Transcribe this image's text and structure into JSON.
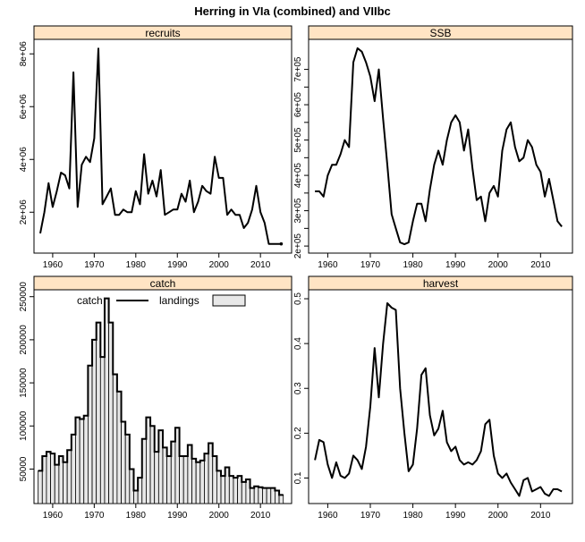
{
  "page": {
    "title": "Herring in VIa (combined) and VIIbc"
  },
  "styles": {
    "strip_fill": "#ffe4c4",
    "bar_fill": "#e8e8e8",
    "line_color": "#000000",
    "frame_color": "#000000"
  },
  "chart_data": [
    {
      "type": "line",
      "title": "recruits",
      "x": [
        1957,
        1958,
        1959,
        1960,
        1961,
        1962,
        1963,
        1964,
        1965,
        1966,
        1967,
        1968,
        1969,
        1970,
        1971,
        1972,
        1973,
        1974,
        1975,
        1976,
        1977,
        1978,
        1979,
        1980,
        1981,
        1982,
        1983,
        1984,
        1985,
        1986,
        1987,
        1988,
        1989,
        1990,
        1991,
        1992,
        1993,
        1994,
        1995,
        1996,
        1997,
        1998,
        1999,
        2000,
        2001,
        2002,
        2003,
        2004,
        2005,
        2006,
        2007,
        2008,
        2009,
        2010,
        2011,
        2012,
        2013,
        2014,
        2015
      ],
      "values": [
        1200000,
        2000000,
        3100000,
        2200000,
        2800000,
        3500000,
        3400000,
        2900000,
        7300000,
        2200000,
        3800000,
        4100000,
        3900000,
        4800000,
        8200000,
        2300000,
        2600000,
        2900000,
        1900000,
        1900000,
        2100000,
        2000000,
        2000000,
        2800000,
        2300000,
        4200000,
        2700000,
        3200000,
        2600000,
        3600000,
        1900000,
        2000000,
        2100000,
        2100000,
        2700000,
        2400000,
        3200000,
        2000000,
        2400000,
        3000000,
        2800000,
        2700000,
        4100000,
        3300000,
        3300000,
        1900000,
        2100000,
        1900000,
        1900000,
        1400000,
        1600000,
        2100000,
        3000000,
        2000000,
        1600000,
        800000,
        800000,
        800000,
        800000
      ],
      "xlim": [
        1955.5,
        2017.5
      ],
      "ylim": [
        450000,
        8550000
      ],
      "x_ticks": [
        1960,
        1970,
        1980,
        1990,
        2000,
        2010
      ],
      "y_ticks": [
        2000000,
        4000000,
        6000000,
        8000000
      ],
      "y_tick_labels": [
        "2e+06",
        "4e+06",
        "6e+06",
        "8e+06"
      ],
      "y_axis_side": "left",
      "x_axis_side": "bottom",
      "end_marker": true
    },
    {
      "type": "line",
      "title": "SSB",
      "x": [
        1957,
        1958,
        1959,
        1960,
        1961,
        1962,
        1963,
        1964,
        1965,
        1966,
        1967,
        1968,
        1969,
        1970,
        1971,
        1972,
        1973,
        1974,
        1975,
        1976,
        1977,
        1978,
        1979,
        1980,
        1981,
        1982,
        1983,
        1984,
        1985,
        1986,
        1987,
        1988,
        1989,
        1990,
        1991,
        1992,
        1993,
        1994,
        1995,
        1996,
        1997,
        1998,
        1999,
        2000,
        2001,
        2002,
        2003,
        2004,
        2005,
        2006,
        2007,
        2008,
        2009,
        2010,
        2011,
        2012,
        2013,
        2014,
        2015
      ],
      "values": [
        355000,
        355000,
        340000,
        400000,
        430000,
        430000,
        460000,
        500000,
        480000,
        720000,
        760000,
        750000,
        720000,
        680000,
        610000,
        700000,
        560000,
        430000,
        290000,
        250000,
        210000,
        205000,
        210000,
        270000,
        320000,
        320000,
        270000,
        360000,
        430000,
        470000,
        430000,
        500000,
        550000,
        570000,
        550000,
        470000,
        530000,
        420000,
        330000,
        340000,
        270000,
        350000,
        370000,
        340000,
        470000,
        530000,
        550000,
        480000,
        440000,
        450000,
        500000,
        480000,
        430000,
        410000,
        340000,
        390000,
        330000,
        270000,
        255000
      ],
      "xlim": [
        1955.5,
        2017.5
      ],
      "ylim": [
        180000,
        785000
      ],
      "x_ticks": [
        1960,
        1970,
        1980,
        1990,
        2000,
        2010
      ],
      "y_ticks": [
        200000,
        250000,
        300000,
        350000,
        400000,
        450000,
        500000,
        550000,
        600000,
        650000,
        700000
      ],
      "y_tick_labels": [
        "2e+05",
        "",
        "3e+05",
        "",
        "4e+05",
        "",
        "5e+05",
        "",
        "6e+05",
        "",
        "7e+05"
      ],
      "y_axis_side": "left",
      "x_axis_side": "bottom"
    },
    {
      "type": "bar",
      "title": "catch",
      "legend": {
        "line_label": "catch",
        "bar_label": "landings",
        "position": "top-left"
      },
      "x": [
        1957,
        1958,
        1959,
        1960,
        1961,
        1962,
        1963,
        1964,
        1965,
        1966,
        1967,
        1968,
        1969,
        1970,
        1971,
        1972,
        1973,
        1974,
        1975,
        1976,
        1977,
        1978,
        1979,
        1980,
        1981,
        1982,
        1983,
        1984,
        1985,
        1986,
        1987,
        1988,
        1989,
        1990,
        1991,
        1992,
        1993,
        1994,
        1995,
        1996,
        1997,
        1998,
        1999,
        2000,
        2001,
        2002,
        2003,
        2004,
        2005,
        2006,
        2007,
        2008,
        2009,
        2010,
        2011,
        2012,
        2013,
        2014,
        2015
      ],
      "values": [
        48000,
        65000,
        70000,
        68000,
        55000,
        65000,
        58000,
        72000,
        90000,
        110000,
        108000,
        112000,
        170000,
        200000,
        220000,
        180000,
        248000,
        220000,
        160000,
        140000,
        105000,
        90000,
        50000,
        25000,
        40000,
        85000,
        110000,
        100000,
        70000,
        95000,
        75000,
        65000,
        82000,
        98000,
        65000,
        65000,
        78000,
        62000,
        58000,
        60000,
        68000,
        80000,
        65000,
        48000,
        42000,
        52000,
        42000,
        40000,
        42000,
        35000,
        38000,
        28000,
        30000,
        29000,
        28000,
        28000,
        28000,
        25000,
        20000
      ],
      "xlim": [
        1955.5,
        2017.5
      ],
      "ylim": [
        10000,
        258000
      ],
      "x_ticks": [
        1960,
        1970,
        1980,
        1990,
        2000,
        2010
      ],
      "y_ticks": [
        50000,
        100000,
        150000,
        200000,
        250000
      ],
      "y_tick_labels": [
        "50000",
        "100000",
        "150000",
        "200000",
        "250000"
      ],
      "y_axis_side": "left",
      "x_axis_side": "bottom"
    },
    {
      "type": "line",
      "title": "harvest",
      "x": [
        1957,
        1958,
        1959,
        1960,
        1961,
        1962,
        1963,
        1964,
        1965,
        1966,
        1967,
        1968,
        1969,
        1970,
        1971,
        1972,
        1973,
        1974,
        1975,
        1976,
        1977,
        1978,
        1979,
        1980,
        1981,
        1982,
        1983,
        1984,
        1985,
        1986,
        1987,
        1988,
        1989,
        1990,
        1991,
        1992,
        1993,
        1994,
        1995,
        1996,
        1997,
        1998,
        1999,
        2000,
        2001,
        2002,
        2003,
        2004,
        2005,
        2006,
        2007,
        2008,
        2009,
        2010,
        2011,
        2012,
        2013,
        2014,
        2015
      ],
      "values": [
        0.14,
        0.185,
        0.18,
        0.13,
        0.1,
        0.135,
        0.105,
        0.1,
        0.11,
        0.15,
        0.14,
        0.12,
        0.17,
        0.26,
        0.39,
        0.28,
        0.4,
        0.49,
        0.48,
        0.475,
        0.3,
        0.2,
        0.115,
        0.13,
        0.21,
        0.33,
        0.345,
        0.24,
        0.195,
        0.21,
        0.25,
        0.18,
        0.16,
        0.17,
        0.14,
        0.13,
        0.135,
        0.13,
        0.14,
        0.16,
        0.22,
        0.23,
        0.15,
        0.11,
        0.1,
        0.11,
        0.09,
        0.075,
        0.06,
        0.095,
        0.1,
        0.07,
        0.075,
        0.08,
        0.065,
        0.06,
        0.075,
        0.075,
        0.07
      ],
      "xlim": [
        1955.5,
        2017.5
      ],
      "ylim": [
        0.043,
        0.52
      ],
      "x_ticks": [
        1960,
        1970,
        1980,
        1990,
        2000,
        2010
      ],
      "y_ticks": [
        0.1,
        0.2,
        0.3,
        0.4,
        0.5
      ],
      "y_tick_labels": [
        "0.1",
        "0.2",
        "0.3",
        "0.4",
        "0.5"
      ],
      "y_axis_side": "right",
      "x_axis_side": "bottom"
    }
  ]
}
